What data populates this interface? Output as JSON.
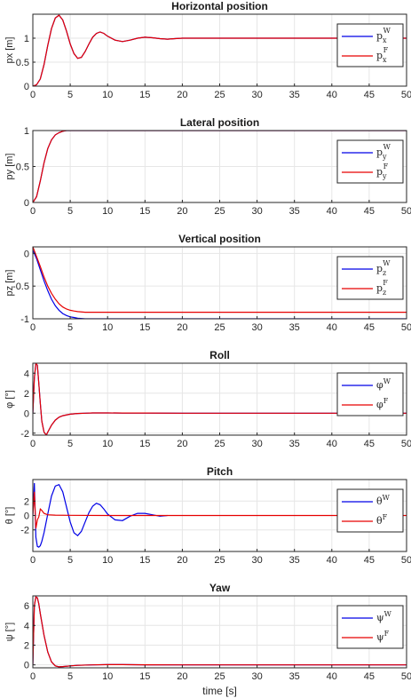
{
  "colors": {
    "W": "#0000e6",
    "F": "#e60000",
    "grid": "#e6e6e6",
    "axis": "#262626"
  },
  "xlabel": "time [s]",
  "chart_data": [
    {
      "type": "line",
      "title": "Horizontal position",
      "ylabel": "px [m]",
      "xlim": [
        0,
        50
      ],
      "ylim": [
        0,
        1.5
      ],
      "xticks": [
        0,
        5,
        10,
        15,
        20,
        25,
        30,
        35,
        40,
        45,
        50
      ],
      "xtick_labels": [
        "0",
        "5",
        "10",
        "15",
        "20",
        "25",
        "30",
        "35",
        "40",
        "45",
        "50"
      ],
      "yticks": [
        0,
        0.5,
        1
      ],
      "ytick_labels": [
        "0",
        "0.5",
        "1"
      ],
      "grid": true,
      "legend": "top-right",
      "series": [
        {
          "name": "p",
          "sub": "x",
          "sup": "W",
          "color_key": "W",
          "x": [
            0,
            0.5,
            1,
            1.5,
            2,
            2.5,
            3,
            3.5,
            4,
            4.5,
            5,
            5.5,
            6,
            6.5,
            7,
            7.5,
            8,
            8.5,
            9,
            9.5,
            10,
            11,
            12,
            13,
            14,
            15,
            16,
            17,
            18,
            19,
            20,
            21,
            22,
            24,
            26,
            30,
            35,
            40,
            45,
            50
          ],
          "y": [
            0,
            0.03,
            0.15,
            0.45,
            0.85,
            1.2,
            1.42,
            1.48,
            1.38,
            1.15,
            0.88,
            0.68,
            0.58,
            0.6,
            0.72,
            0.88,
            1.02,
            1.1,
            1.13,
            1.1,
            1.04,
            0.96,
            0.93,
            0.96,
            1.0,
            1.02,
            1.01,
            0.99,
            0.98,
            0.99,
            1.0,
            1.0,
            1.0,
            1.0,
            1.0,
            1.0,
            1.0,
            1.0,
            1.0,
            1.0
          ]
        },
        {
          "name": "p",
          "sub": "x",
          "sup": "F",
          "color_key": "F",
          "x": [
            0,
            0.5,
            1,
            1.5,
            2,
            2.5,
            3,
            3.5,
            4,
            4.5,
            5,
            5.5,
            6,
            6.5,
            7,
            7.5,
            8,
            8.5,
            9,
            9.5,
            10,
            11,
            12,
            13,
            14,
            15,
            16,
            17,
            18,
            19,
            20,
            21,
            22,
            24,
            26,
            30,
            35,
            40,
            45,
            50
          ],
          "y": [
            0,
            0.03,
            0.15,
            0.45,
            0.85,
            1.2,
            1.42,
            1.48,
            1.38,
            1.15,
            0.88,
            0.68,
            0.58,
            0.6,
            0.72,
            0.88,
            1.02,
            1.1,
            1.13,
            1.1,
            1.04,
            0.96,
            0.93,
            0.96,
            1.0,
            1.02,
            1.01,
            0.99,
            0.98,
            0.99,
            1.0,
            1.0,
            1.0,
            1.0,
            1.0,
            1.0,
            1.0,
            1.0,
            1.0,
            1.0
          ]
        }
      ]
    },
    {
      "type": "line",
      "title": "Lateral position",
      "ylabel": "py [m]",
      "xlim": [
        0,
        50
      ],
      "ylim": [
        0,
        1
      ],
      "xticks": [
        0,
        5,
        10,
        15,
        20,
        25,
        30,
        35,
        40,
        45,
        50
      ],
      "xtick_labels": [
        "0",
        "5",
        "10",
        "15",
        "20",
        "25",
        "30",
        "35",
        "40",
        "45",
        "50"
      ],
      "yticks": [
        0,
        0.5,
        1
      ],
      "ytick_labels": [
        "0",
        "0.5",
        "1"
      ],
      "grid": true,
      "legend": "top-right",
      "series": [
        {
          "name": "p",
          "sub": "y",
          "sup": "W",
          "color_key": "W",
          "x": [
            0,
            0.5,
            1,
            1.5,
            2,
            2.5,
            3,
            3.5,
            4,
            4.5,
            5,
            6,
            10,
            20,
            30,
            40,
            50
          ],
          "y": [
            0,
            0.08,
            0.3,
            0.55,
            0.75,
            0.87,
            0.94,
            0.97,
            0.99,
            1.0,
            1.0,
            1.0,
            1.0,
            1.0,
            1.0,
            1.0,
            1.0
          ]
        },
        {
          "name": "p",
          "sub": "y",
          "sup": "F",
          "color_key": "F",
          "x": [
            0,
            0.5,
            1,
            1.5,
            2,
            2.5,
            3,
            3.5,
            4,
            4.5,
            5,
            6,
            10,
            20,
            30,
            40,
            50
          ],
          "y": [
            0,
            0.08,
            0.3,
            0.55,
            0.75,
            0.87,
            0.94,
            0.97,
            0.99,
            1.0,
            1.0,
            1.0,
            1.0,
            1.0,
            1.0,
            1.0,
            1.0
          ]
        }
      ]
    },
    {
      "type": "line",
      "title": "Vertical position",
      "ylabel": "pz [m]",
      "xlim": [
        0,
        50
      ],
      "ylim": [
        -1,
        0.1
      ],
      "xticks": [
        0,
        5,
        10,
        15,
        20,
        25,
        30,
        35,
        40,
        45,
        50
      ],
      "xtick_labels": [
        "0",
        "5",
        "10",
        "15",
        "20",
        "25",
        "30",
        "35",
        "40",
        "45",
        "50"
      ],
      "yticks": [
        -1,
        -0.5,
        0
      ],
      "ytick_labels": [
        "-1",
        "-0.5",
        "0"
      ],
      "grid": true,
      "legend": "top-right",
      "series": [
        {
          "name": "p",
          "sub": "z",
          "sup": "W",
          "color_key": "W",
          "x": [
            0,
            0.5,
            1,
            1.5,
            2,
            2.5,
            3,
            3.5,
            4,
            4.5,
            5,
            5.5,
            6,
            7,
            8,
            10,
            20,
            30,
            40,
            50
          ],
          "y": [
            0.05,
            -0.08,
            -0.25,
            -0.42,
            -0.57,
            -0.7,
            -0.8,
            -0.87,
            -0.92,
            -0.95,
            -0.97,
            -0.98,
            -0.99,
            -1.0,
            -1.0,
            -1.0,
            -1.0,
            -1.0,
            -1.0,
            -1.0
          ]
        },
        {
          "name": "p",
          "sub": "z",
          "sup": "F",
          "color_key": "F",
          "x": [
            0,
            0.5,
            1,
            1.5,
            2,
            2.5,
            3,
            3.5,
            4,
            4.5,
            5,
            5.5,
            6,
            7,
            8,
            10,
            20,
            30,
            40,
            50
          ],
          "y": [
            0.1,
            -0.05,
            -0.2,
            -0.36,
            -0.5,
            -0.61,
            -0.7,
            -0.77,
            -0.82,
            -0.85,
            -0.87,
            -0.88,
            -0.89,
            -0.9,
            -0.9,
            -0.9,
            -0.9,
            -0.9,
            -0.9,
            -0.9
          ]
        }
      ]
    },
    {
      "type": "line",
      "title": "Roll",
      "ylabel": "φ [°]",
      "xlim": [
        0,
        50
      ],
      "ylim": [
        -2.2,
        5
      ],
      "xticks": [
        0,
        5,
        10,
        15,
        20,
        25,
        30,
        35,
        40,
        45,
        50
      ],
      "xtick_labels": [
        "0",
        "5",
        "10",
        "15",
        "20",
        "25",
        "30",
        "35",
        "40",
        "45",
        "50"
      ],
      "yticks": [
        -2,
        0,
        2,
        4
      ],
      "ytick_labels": [
        "-2",
        "0",
        "2",
        "4"
      ],
      "grid": true,
      "legend": "top-right",
      "series": [
        {
          "name": "φ",
          "sub": "",
          "sup": "W",
          "color_key": "W",
          "x": [
            0,
            0.2,
            0.4,
            0.6,
            0.8,
            1,
            1.2,
            1.5,
            1.8,
            2,
            2.5,
            3,
            3.5,
            4,
            5,
            6,
            7,
            8,
            10,
            12,
            15,
            20,
            30,
            40,
            50
          ],
          "y": [
            0,
            3.5,
            5,
            4.8,
            3,
            1,
            -0.8,
            -1.9,
            -2.2,
            -1.9,
            -1.2,
            -0.7,
            -0.4,
            -0.25,
            -0.1,
            -0.03,
            0,
            0.02,
            0.02,
            0.01,
            0.01,
            0,
            0,
            0,
            0
          ]
        },
        {
          "name": "φ",
          "sub": "",
          "sup": "F",
          "color_key": "F",
          "x": [
            0,
            0.2,
            0.4,
            0.6,
            0.8,
            1,
            1.2,
            1.5,
            1.8,
            2,
            2.5,
            3,
            3.5,
            4,
            5,
            6,
            7,
            8,
            10,
            12,
            15,
            20,
            30,
            40,
            50
          ],
          "y": [
            0,
            3.5,
            5,
            4.8,
            3,
            1,
            -0.8,
            -1.9,
            -2.2,
            -1.9,
            -1.2,
            -0.7,
            -0.4,
            -0.25,
            -0.1,
            -0.03,
            0,
            0.02,
            0.02,
            0.01,
            0.01,
            0,
            0,
            0,
            0
          ]
        }
      ]
    },
    {
      "type": "line",
      "title": "Pitch",
      "ylabel": "θ [°]",
      "xlim": [
        0,
        50
      ],
      "ylim": [
        -5,
        5
      ],
      "xticks": [
        0,
        5,
        10,
        15,
        20,
        25,
        30,
        35,
        40,
        45,
        50
      ],
      "xtick_labels": [
        "0",
        "5",
        "10",
        "15",
        "20",
        "25",
        "30",
        "35",
        "40",
        "45",
        "50"
      ],
      "yticks": [
        -2,
        0,
        2
      ],
      "ytick_labels": [
        "-2",
        "0",
        "2"
      ],
      "grid": true,
      "legend": "top-right",
      "series": [
        {
          "name": "θ",
          "sub": "",
          "sup": "W",
          "color_key": "W",
          "x": [
            0,
            0.2,
            0.4,
            0.6,
            0.8,
            1,
            1.2,
            1.5,
            2,
            2.5,
            3,
            3.5,
            4,
            4.5,
            5,
            5.5,
            6,
            6.5,
            7,
            7.5,
            8,
            8.5,
            9,
            9.5,
            10,
            11,
            12,
            13,
            14,
            15,
            16,
            17,
            18
          ],
          "y": [
            0,
            4.5,
            -3,
            -4.3,
            -4.4,
            -4.2,
            -3.6,
            -2.4,
            0.2,
            2.7,
            4.1,
            4.3,
            3.3,
            1.2,
            -0.9,
            -2.4,
            -2.8,
            -2.2,
            -0.9,
            0.4,
            1.3,
            1.7,
            1.5,
            0.9,
            0.2,
            -0.6,
            -0.7,
            -0.1,
            0.3,
            0.3,
            0.1,
            -0.1,
            0
          ]
        },
        {
          "name": "θ",
          "sub": "",
          "sup": "F",
          "color_key": "F",
          "x": [
            0,
            0.2,
            0.4,
            0.6,
            0.8,
            1,
            1.2,
            1.5,
            2,
            3,
            5,
            10,
            20,
            30,
            40,
            50
          ],
          "y": [
            0,
            3.3,
            -1.8,
            -0.6,
            -0.2,
            0.9,
            0.7,
            0.3,
            0.1,
            0.05,
            0.02,
            0,
            0,
            0,
            0,
            0
          ]
        }
      ]
    },
    {
      "type": "line",
      "title": "Yaw",
      "ylabel": "ψ [°]",
      "xlim": [
        0,
        50
      ],
      "ylim": [
        -0.3,
        7
      ],
      "xticks": [
        0,
        5,
        10,
        15,
        20,
        25,
        30,
        35,
        40,
        45,
        50
      ],
      "xtick_labels": [
        "0",
        "5",
        "10",
        "15",
        "20",
        "25",
        "30",
        "35",
        "40",
        "45",
        "50"
      ],
      "yticks": [
        0,
        2,
        4,
        6
      ],
      "ytick_labels": [
        "0",
        "2",
        "4",
        "6"
      ],
      "grid": true,
      "legend": "top-right",
      "series": [
        {
          "name": "ψ",
          "sub": "",
          "sup": "W",
          "color_key": "W",
          "x": [
            0,
            0.2,
            0.4,
            0.6,
            0.8,
            1,
            1.5,
            2,
            2.5,
            3,
            3.5,
            4,
            5,
            6,
            8,
            10,
            12,
            15,
            20,
            30,
            40,
            50
          ],
          "y": [
            0,
            6,
            6.9,
            6.8,
            6.2,
            5.2,
            3.0,
            1.3,
            0.3,
            -0.1,
            -0.2,
            -0.17,
            -0.1,
            -0.05,
            0,
            0.02,
            0.02,
            0.01,
            0,
            0,
            0,
            0
          ]
        },
        {
          "name": "ψ",
          "sub": "",
          "sup": "F",
          "color_key": "F",
          "x": [
            0,
            0.2,
            0.4,
            0.6,
            0.8,
            1,
            1.5,
            2,
            2.5,
            3,
            3.5,
            4,
            5,
            6,
            8,
            10,
            12,
            15,
            20,
            30,
            40,
            50
          ],
          "y": [
            0,
            6,
            6.9,
            6.8,
            6.2,
            5.2,
            3.0,
            1.3,
            0.3,
            -0.1,
            -0.2,
            -0.17,
            -0.1,
            -0.05,
            0,
            0.02,
            0.02,
            0.01,
            0,
            0,
            0,
            0
          ]
        }
      ]
    }
  ]
}
